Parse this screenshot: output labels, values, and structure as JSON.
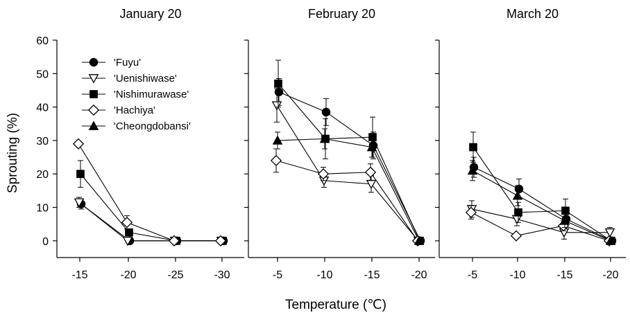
{
  "figure": {
    "ylabel": "Sprouting (%)",
    "xlabel": "Temperature (℃)"
  },
  "chart_data": [
    {
      "type": "line",
      "title": "January 20",
      "categories": [
        "-15",
        "-20",
        "-25",
        "-30"
      ],
      "ylim": [
        -5,
        60
      ],
      "yticks": [
        0,
        10,
        20,
        30,
        40,
        50,
        60
      ],
      "legend_position": "top-left",
      "legend": [
        "'Fuyu'",
        "'Uenishiwase'",
        "'Nishimurawase'",
        "'Hachiya'",
        "'Cheongdobansi'"
      ],
      "series": [
        {
          "name": "'Fuyu'",
          "marker": "circle-filled",
          "values": [
            11,
            0,
            0,
            0
          ],
          "errors": [
            1.5,
            0,
            0,
            0
          ]
        },
        {
          "name": "'Uenishiwase'",
          "marker": "triangle-down-open",
          "values": [
            11.5,
            0,
            0,
            0
          ],
          "errors": [
            1.5,
            0,
            0,
            0
          ]
        },
        {
          "name": "'Nishimurawase'",
          "marker": "square-filled",
          "values": [
            20,
            2.5,
            0,
            0
          ],
          "errors": [
            4,
            1,
            0,
            0
          ]
        },
        {
          "name": "'Hachiya'",
          "marker": "diamond-open",
          "values": [
            29,
            5.5,
            0,
            0
          ],
          "errors": [
            0,
            2,
            0,
            0
          ]
        },
        {
          "name": "'Cheongdobansi'",
          "marker": "triangle-up-filled",
          "values": [
            null,
            null,
            null,
            null
          ],
          "errors": [
            0,
            0,
            0,
            0
          ]
        }
      ]
    },
    {
      "type": "line",
      "title": "February 20",
      "categories": [
        "-5",
        "-10",
        "-15",
        "-20"
      ],
      "ylim": [
        -5,
        60
      ],
      "series": [
        {
          "name": "'Fuyu'",
          "marker": "circle-filled",
          "values": [
            44.5,
            38.5,
            28.5,
            0
          ],
          "errors": [
            4,
            4,
            4,
            0
          ]
        },
        {
          "name": "'Uenishiwase'",
          "marker": "triangle-down-open",
          "values": [
            40.5,
            18,
            17,
            0
          ],
          "errors": [
            5,
            2,
            2.5,
            0
          ]
        },
        {
          "name": "'Nishimurawase'",
          "marker": "square-filled",
          "values": [
            47,
            30.5,
            31,
            0
          ],
          "errors": [
            7,
            6,
            6,
            0
          ]
        },
        {
          "name": "'Hachiya'",
          "marker": "diamond-open",
          "values": [
            24,
            20,
            20.5,
            0
          ],
          "errors": [
            3.5,
            2,
            2.5,
            0
          ]
        },
        {
          "name": "'Cheongdobansi'",
          "marker": "triangle-up-filled",
          "values": [
            30,
            30.5,
            28,
            0
          ],
          "errors": [
            2.5,
            3,
            3,
            0
          ]
        }
      ]
    },
    {
      "type": "line",
      "title": "March 20",
      "categories": [
        "-5",
        "-10",
        "-15",
        "-20"
      ],
      "ylim": [
        -5,
        60
      ],
      "series": [
        {
          "name": "'Fuyu'",
          "marker": "circle-filled",
          "values": [
            22,
            15.5,
            6.5,
            0
          ],
          "errors": [
            3,
            3,
            2,
            0
          ]
        },
        {
          "name": "'Uenishiwase'",
          "marker": "triangle-down-open",
          "values": [
            9.5,
            6.5,
            2.5,
            2.5
          ],
          "errors": [
            2.5,
            2,
            2,
            1.5
          ]
        },
        {
          "name": "'Nishimurawase'",
          "marker": "square-filled",
          "values": [
            28,
            8.5,
            9,
            0
          ],
          "errors": [
            4.5,
            3,
            3.5,
            0
          ]
        },
        {
          "name": "'Hachiya'",
          "marker": "diamond-open",
          "values": [
            8.5,
            1.5,
            4.5,
            0
          ],
          "errors": [
            2,
            0,
            1.5,
            0
          ]
        },
        {
          "name": "'Cheongdobansi'",
          "marker": "triangle-up-filled",
          "values": [
            21,
            13.5,
            6,
            0
          ],
          "errors": [
            3,
            3,
            2,
            0
          ]
        }
      ]
    }
  ]
}
